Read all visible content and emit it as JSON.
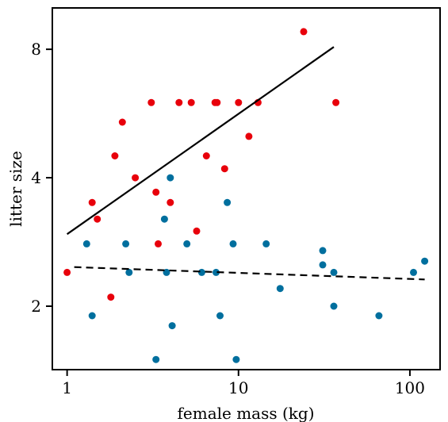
{
  "chart_data": {
    "type": "scatter",
    "title": "",
    "xlabel": "female mass (kg)",
    "ylabel": "litter size",
    "x_scale": "log",
    "y_scale": "log",
    "xlim": [
      0.82,
      150
    ],
    "ylim": [
      1.42,
      10.0
    ],
    "x_ticks": [
      {
        "value": 1,
        "label": "1"
      },
      {
        "value": 10,
        "label": "10"
      },
      {
        "value": 100,
        "label": "100"
      }
    ],
    "y_ticks": [
      {
        "value": 2,
        "label": "2"
      },
      {
        "value": 4,
        "label": "4"
      },
      {
        "value": 8,
        "label": "8"
      }
    ],
    "grid": false,
    "legend": "none",
    "series": [
      {
        "color": "#e8000b",
        "points": [
          [
            1.0,
            2.4
          ],
          [
            1.4,
            3.5
          ],
          [
            1.5,
            3.2
          ],
          [
            1.8,
            2.1
          ],
          [
            1.9,
            4.5
          ],
          [
            2.1,
            5.4
          ],
          [
            2.5,
            4.0
          ],
          [
            3.1,
            6.0
          ],
          [
            3.3,
            3.7
          ],
          [
            3.4,
            2.8
          ],
          [
            4.0,
            3.5
          ],
          [
            4.5,
            6.0
          ],
          [
            5.3,
            6.0
          ],
          [
            5.7,
            3.0
          ],
          [
            6.5,
            4.5
          ],
          [
            7.3,
            6.0
          ],
          [
            7.5,
            6.0
          ],
          [
            8.3,
            4.2
          ],
          [
            10.0,
            6.0
          ],
          [
            11.5,
            5.0
          ],
          [
            13.0,
            6.0
          ],
          [
            24.0,
            8.8
          ],
          [
            37.0,
            6.0
          ]
        ],
        "trend": {
          "style": "solid",
          "x": [
            1.0,
            36.0
          ],
          "y": [
            2.95,
            8.1
          ]
        }
      },
      {
        "color": "#006f9e",
        "points": [
          [
            1.3,
            2.8
          ],
          [
            1.4,
            1.9
          ],
          [
            2.2,
            2.8
          ],
          [
            2.3,
            2.4
          ],
          [
            3.3,
            1.5
          ],
          [
            3.7,
            3.2
          ],
          [
            3.8,
            2.4
          ],
          [
            4.0,
            4.0
          ],
          [
            4.1,
            1.8
          ],
          [
            5.0,
            2.8
          ],
          [
            6.1,
            2.4
          ],
          [
            7.4,
            2.4
          ],
          [
            7.8,
            1.9
          ],
          [
            8.6,
            3.5
          ],
          [
            9.3,
            2.8
          ],
          [
            9.7,
            1.5
          ],
          [
            14.5,
            2.8
          ],
          [
            17.5,
            2.2
          ],
          [
            31.0,
            2.5
          ],
          [
            31.0,
            2.7
          ],
          [
            36.0,
            2.4
          ],
          [
            36.0,
            2.0
          ],
          [
            66.0,
            1.9
          ],
          [
            105.0,
            2.4
          ],
          [
            122.0,
            2.55
          ]
        ],
        "trend": {
          "style": "dashed",
          "x": [
            1.1,
            122.0
          ],
          "y": [
            2.47,
            2.31
          ]
        }
      }
    ]
  }
}
